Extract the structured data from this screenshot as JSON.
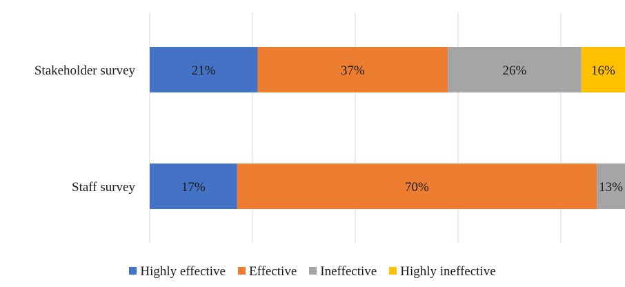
{
  "chart_data": {
    "type": "bar",
    "orientation": "horizontal",
    "stacked": true,
    "percent": true,
    "categories": [
      "Stakeholder survey",
      "Staff survey"
    ],
    "series": [
      {
        "name": "Highly effective",
        "color": "#4472C4",
        "values": [
          21,
          17
        ]
      },
      {
        "name": "Effective",
        "color": "#ED7D31",
        "values": [
          37,
          70
        ]
      },
      {
        "name": "Ineffective",
        "color": "#A5A5A5",
        "values": [
          26,
          13
        ]
      },
      {
        "name": "Highly ineffective",
        "color": "#FFC000",
        "values": [
          16,
          0
        ]
      }
    ],
    "title": "",
    "xlabel": "",
    "ylabel": "",
    "xlim": [
      0,
      100
    ],
    "grid": true,
    "legend": "bottom"
  }
}
